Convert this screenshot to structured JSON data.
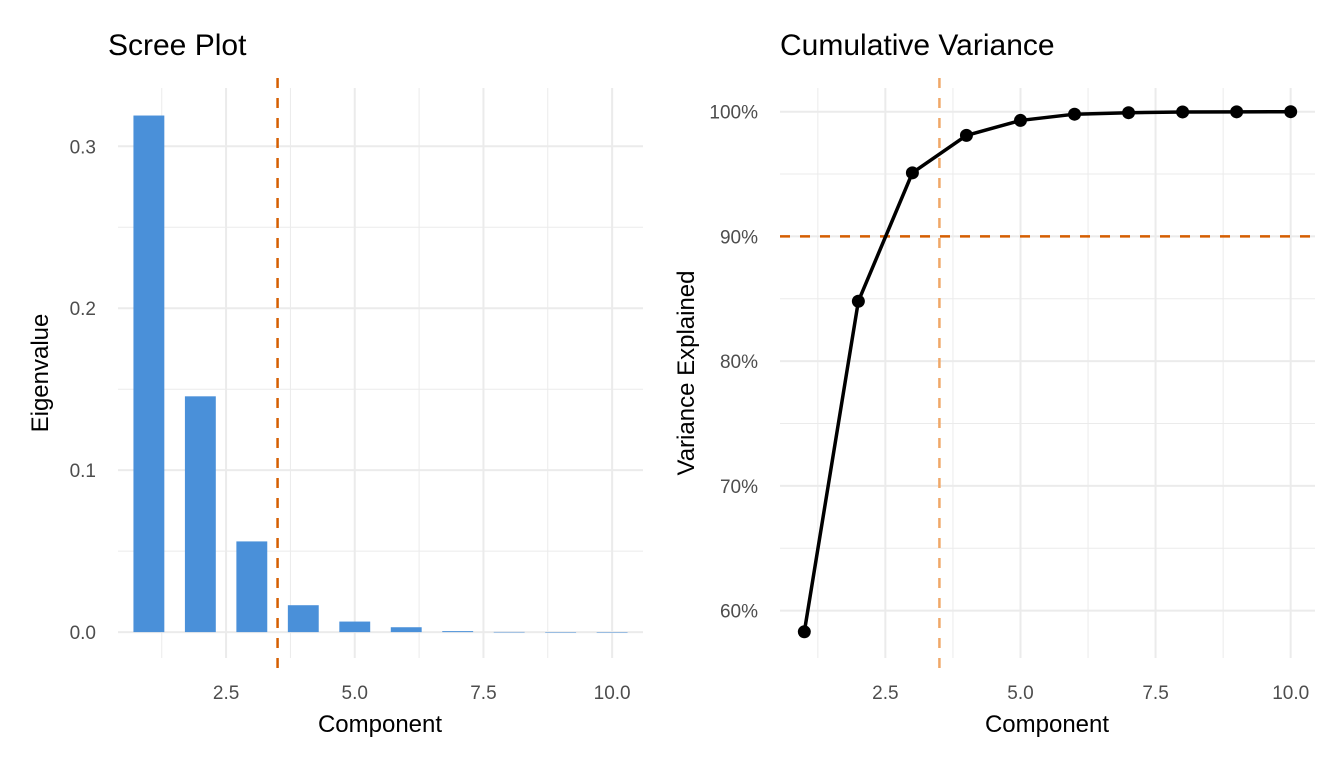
{
  "chart_data": [
    {
      "type": "bar",
      "title": "Scree Plot",
      "xlabel": "Component",
      "ylabel": "Eigenvalue",
      "x": [
        1,
        2,
        3,
        4,
        5,
        6,
        7,
        8,
        9,
        10
      ],
      "values": [
        0.319,
        0.1456,
        0.056,
        0.0166,
        0.0065,
        0.003,
        0.0006,
        0.0001,
        5e-05,
        2e-05
      ],
      "xlim": [
        0.4,
        10.6
      ],
      "ylim": [
        -0.016,
        0.336
      ],
      "xticks": [
        2.5,
        5.0,
        7.5,
        10.0
      ],
      "xtick_labels": [
        "2.5",
        "5.0",
        "7.5",
        "10.0"
      ],
      "yticks": [
        0,
        0.1,
        0.2,
        0.3
      ],
      "ytick_labels": [
        "0.0",
        "0.1",
        "0.2",
        "0.3"
      ],
      "vline": 3.5,
      "bar_color": "#4A90D9",
      "line_color": "#D55E00",
      "grid": true
    },
    {
      "type": "line",
      "title": "Cumulative Variance",
      "xlabel": "Component",
      "ylabel": "Variance Explained",
      "x": [
        1,
        2,
        3,
        4,
        5,
        6,
        7,
        8,
        9,
        10
      ],
      "values": [
        0.583,
        0.848,
        0.951,
        0.981,
        0.993,
        0.998,
        0.9992,
        0.9998,
        0.9999,
        1.0
      ],
      "xlim": [
        0.55,
        10.45
      ],
      "ylim": [
        0.562,
        1.019
      ],
      "xticks": [
        2.5,
        5.0,
        7.5,
        10.0
      ],
      "xtick_labels": [
        "2.5",
        "5.0",
        "7.5",
        "10.0"
      ],
      "yticks": [
        0.6,
        0.7,
        0.8,
        0.9,
        1.0
      ],
      "ytick_labels": [
        "60%",
        "70%",
        "80%",
        "90%",
        "100%"
      ],
      "hline": 0.9,
      "vline": 3.5,
      "line_color": "#000000",
      "hline_color": "#D55E00",
      "vline_color": "#F0A868",
      "grid": true
    }
  ]
}
